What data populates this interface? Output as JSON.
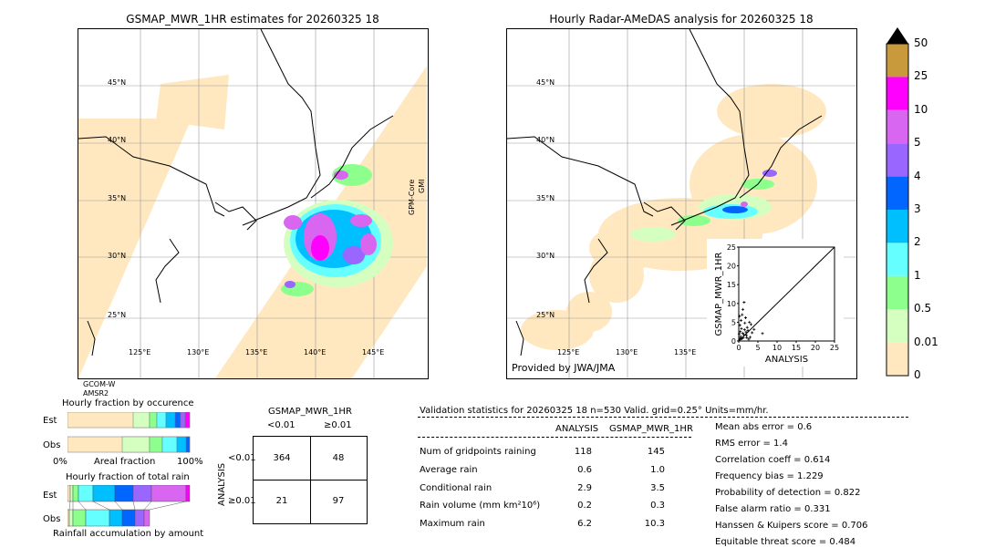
{
  "left_map": {
    "title": "GSMAP_MWR_1HR estimates for 20260325 18",
    "lat_labels": [
      "45°N",
      "40°N",
      "35°N",
      "30°N",
      "25°N"
    ],
    "lon_labels": [
      "125°E",
      "130°E",
      "135°E",
      "140°E",
      "145°E"
    ],
    "side_label_1": "GPM-Core",
    "side_label_2": "GMI",
    "sat_label_1": "GCOM-W",
    "sat_label_2": "AMSR2"
  },
  "right_map": {
    "title": "Hourly Radar-AMeDAS analysis for 20260325 18",
    "lat_labels": [
      "45°N",
      "40°N",
      "35°N",
      "30°N",
      "25°N"
    ],
    "lon_labels": [
      "125°E",
      "130°E",
      "135°E"
    ],
    "credit": "Provided by JWA/JMA"
  },
  "colorbar": {
    "labels": [
      "50",
      "25",
      "10",
      "5",
      "4",
      "3",
      "2",
      "1",
      "0.5",
      "0.01",
      "0"
    ],
    "colors": [
      "#c89a3c",
      "#ff00ff",
      "#d966f0",
      "#9966ff",
      "#0066ff",
      "#00bfff",
      "#66ffff",
      "#8cff8c",
      "#d4ffc0",
      "#ffe8c0"
    ]
  },
  "fraction_charts": {
    "occurrence_title": "Hourly fraction by occurence",
    "amount_title": "Hourly fraction of total rain",
    "row_est": "Est",
    "row_obs": "Obs",
    "axis_0": "0%",
    "axis_mid": "Areal fraction",
    "axis_100": "100%",
    "accum_caption": "Rainfall accumulation by amount"
  },
  "contingency": {
    "title": "GSMAP_MWR_1HR",
    "col_lt": "<0.01",
    "col_ge": "≥0.01",
    "row_lt": "<0.01",
    "row_ge": "≥0.01",
    "ylabel": "ANALYSIS",
    "cells": [
      "364",
      "48",
      "21",
      "97"
    ]
  },
  "validation": {
    "header": "Validation statistics for 20260325 18  n=530 Valid. grid=0.25° Units=mm/hr.",
    "col_analysis": "ANALYSIS",
    "col_gsmap": "GSMAP_MWR_1HR",
    "rows": [
      {
        "label": "Num of gridpoints raining",
        "analysis": "118",
        "gsmap": "145"
      },
      {
        "label": "Average rain",
        "analysis": "0.6",
        "gsmap": "1.0"
      },
      {
        "label": "Conditional rain",
        "analysis": "2.9",
        "gsmap": "3.5"
      },
      {
        "label": "Rain volume (mm km²10⁶)",
        "analysis": "0.2",
        "gsmap": "0.3"
      },
      {
        "label": "Maximum rain",
        "analysis": "6.2",
        "gsmap": "10.3"
      }
    ],
    "scores": [
      "Mean abs error =    0.6",
      "RMS error =    1.4",
      "Correlation coeff =  0.614",
      "Frequency bias =  1.229",
      "Probability of detection =  0.822",
      "False alarm ratio =  0.331",
      "Hanssen & Kuipers score =  0.706",
      "Equitable threat score =  0.484"
    ]
  },
  "chart_data": {
    "type": "scatter",
    "xlabel": "ANALYSIS",
    "ylabel": "GSMAP_MWR_1HR",
    "xlim": [
      0,
      25
    ],
    "ylim": [
      0,
      25
    ],
    "ticks": [
      "0",
      "5",
      "10",
      "15",
      "20",
      "25"
    ],
    "points": [
      [
        0.2,
        0.3
      ],
      [
        0.5,
        1.2
      ],
      [
        0.8,
        0.6
      ],
      [
        1.0,
        2.1
      ],
      [
        1.2,
        0.9
      ],
      [
        1.5,
        3.0
      ],
      [
        0.3,
        4.2
      ],
      [
        2.0,
        1.5
      ],
      [
        2.4,
        2.8
      ],
      [
        0.6,
        5.5
      ],
      [
        1.8,
        6.2
      ],
      [
        3.0,
        1.0
      ],
      [
        0.9,
        7.0
      ],
      [
        1.1,
        8.4
      ],
      [
        2.2,
        3.6
      ],
      [
        0.4,
        2.5
      ],
      [
        3.5,
        2.2
      ],
      [
        0.7,
        3.3
      ],
      [
        1.6,
        4.8
      ],
      [
        2.8,
        5.0
      ],
      [
        0.2,
        6.6
      ],
      [
        1.3,
        1.7
      ],
      [
        4.0,
        3.1
      ],
      [
        0.5,
        0.8
      ],
      [
        2.6,
        0.5
      ],
      [
        1.9,
        2.4
      ],
      [
        0.1,
        1.9
      ],
      [
        3.2,
        4.4
      ],
      [
        6.2,
        2.0
      ],
      [
        1.4,
        10.3
      ],
      [
        0.3,
        0.4
      ],
      [
        2.1,
        0.9
      ]
    ]
  }
}
